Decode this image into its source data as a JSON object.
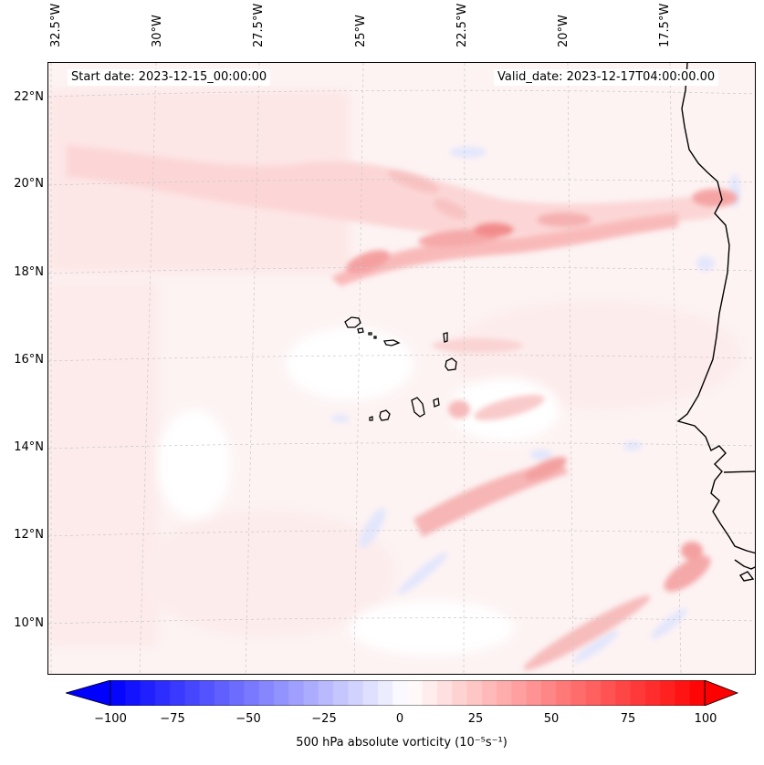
{
  "map": {
    "lon_labels": [
      "32.5°W",
      "30°W",
      "27.5°W",
      "25°W",
      "22.5°W",
      "20°W",
      "17.5°W"
    ],
    "lat_labels": [
      "22°N",
      "20°N",
      "18°N",
      "16°N",
      "14°N",
      "12°N",
      "10°N"
    ],
    "start_date": "Start date: 2023-12-15_00:00:00",
    "valid_date": "Valid_date: 2023-12-17T04:00:00.00",
    "region": "Cape Verde and West African coast"
  },
  "colorbar": {
    "label": "500 hPa absolute vorticity (10⁻⁵s⁻¹)",
    "ticks": [
      "−100",
      "−75",
      "−50",
      "−25",
      "0",
      "25",
      "50",
      "75",
      "100"
    ],
    "min": -100,
    "max": 100,
    "low_color": "#0000ff",
    "mid_color": "#ffffff",
    "high_color": "#ff0000"
  }
}
